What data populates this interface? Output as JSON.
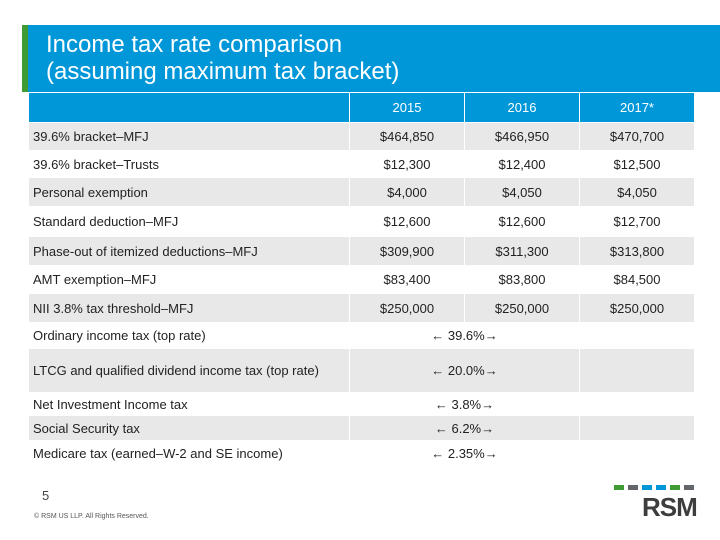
{
  "header": {
    "title": [
      "Income tax rate comparison",
      "(assuming maximum tax bracket)"
    ]
  },
  "table": {
    "columns": [
      "2015",
      "2016",
      "2017*"
    ],
    "rows": [
      [
        "39.6% bracket–MFJ",
        "$464,850",
        "$466,950",
        "$470,700"
      ],
      [
        "39.6% bracket–Trusts",
        "$12,300",
        "$12,400",
        "$12,500"
      ],
      [
        "Personal exemption",
        "$4,000",
        "$4,050",
        "$4,050"
      ],
      [
        "Standard deduction–MFJ",
        "$12,600",
        "$12,600",
        "$12,700"
      ],
      [
        "Phase-out of itemized deductions–MFJ",
        "$309,900",
        "$311,300",
        "$313,800"
      ],
      [
        "AMT exemption–MFJ",
        "$83,400",
        "$83,800",
        "$84,500"
      ],
      [
        "NII 3.8% tax threshold–MFJ",
        "$250,000",
        "$250,000",
        "$250,000"
      ],
      [
        "Ordinary income tax (top rate)",
        "← 39.6%→"
      ],
      [
        "LTCG and qualified dividend income tax (top rate)",
        "← 20.0%→"
      ],
      [
        "Net Investment Income tax",
        "← 3.8%→"
      ],
      [
        "Social Security tax",
        "← 6.2%→"
      ],
      [
        "Medicare tax (earned–W-2 and SE income)",
        "← 2.35%→"
      ]
    ]
  },
  "footer": {
    "page": "5",
    "copyright": "© RSM US LLP. All Rights Reserved.",
    "logo": "RSM"
  }
}
